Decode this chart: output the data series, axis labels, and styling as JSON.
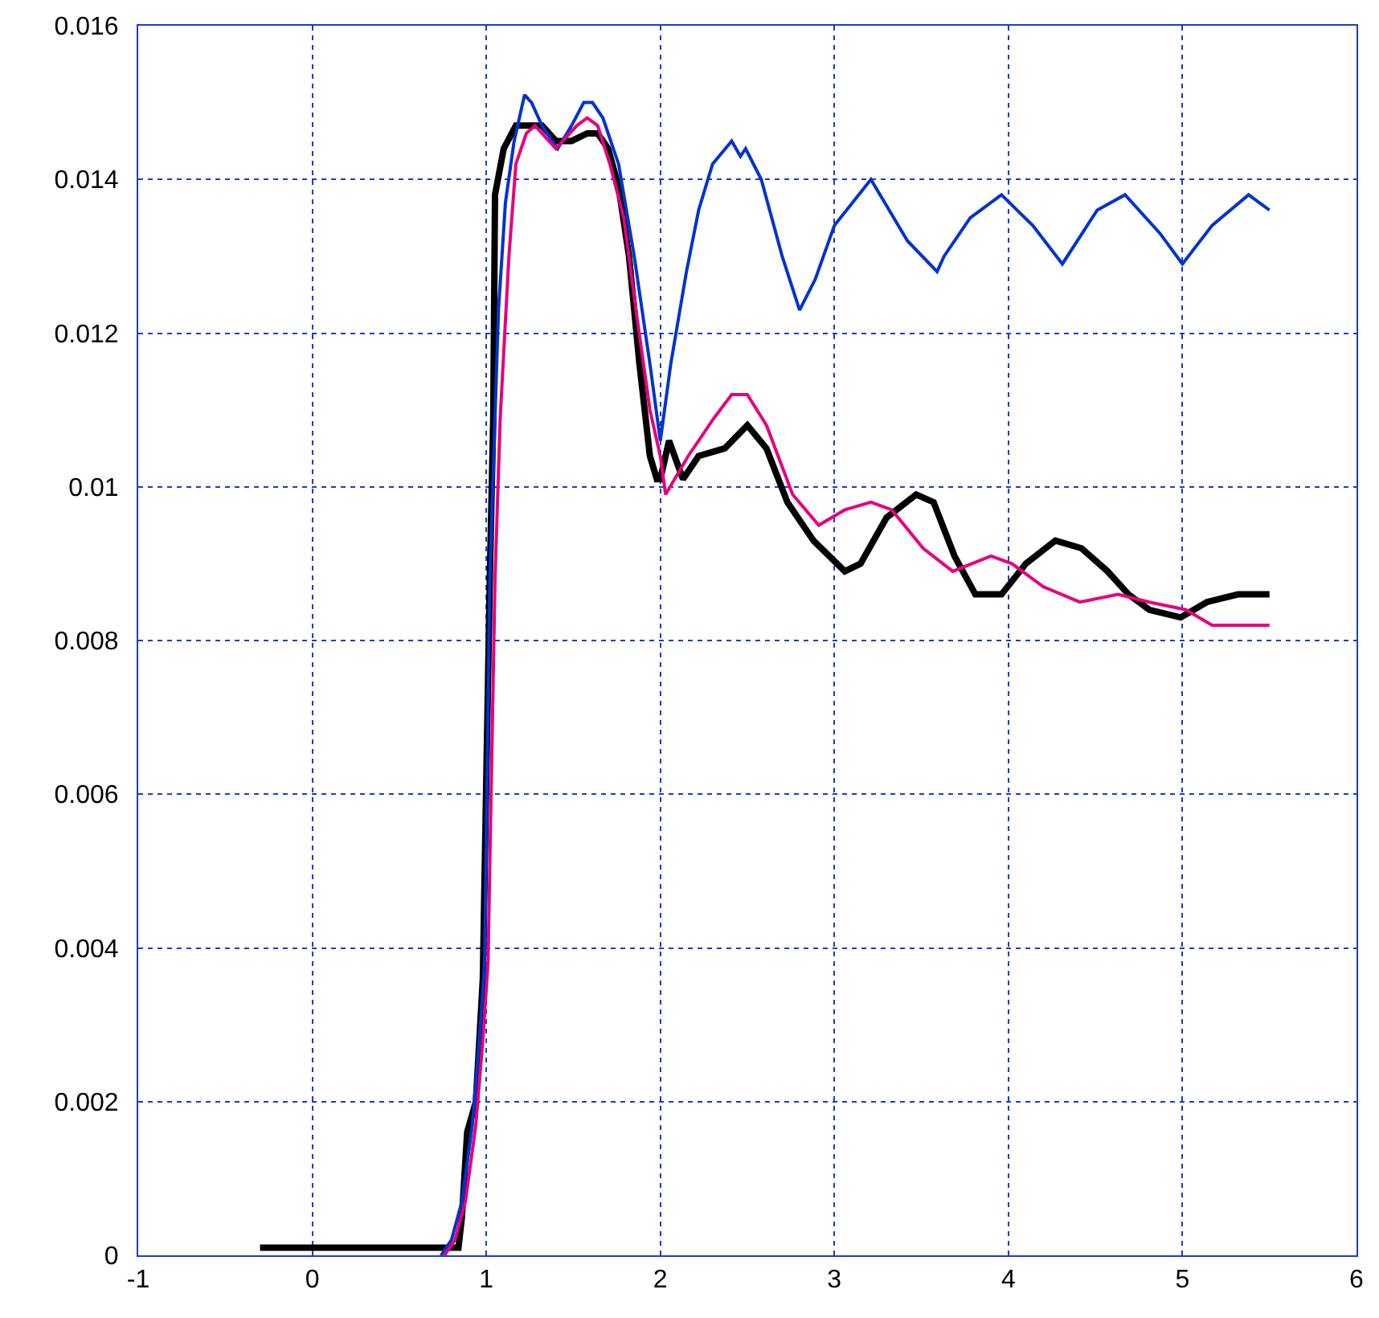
{
  "chart_data": {
    "type": "line",
    "xlim": [
      -1,
      6
    ],
    "ylim": [
      0,
      0.016
    ],
    "xticks": [
      -1,
      0,
      1,
      2,
      3,
      4,
      5,
      6
    ],
    "yticks": [
      0,
      0.002,
      0.004,
      0.006,
      0.008,
      0.01,
      0.012,
      0.014,
      0.016
    ],
    "grid": true,
    "marker": "none",
    "line_style": "solid",
    "series": [
      {
        "color": "#000000",
        "x": [
          -0.3,
          0,
          0.3,
          0.6,
          0.84,
          0.86,
          0.89,
          0.94,
          0.98,
          1.02,
          1.04,
          1.05,
          1.1,
          1.17,
          1.25,
          1.32,
          1.4,
          1.49,
          1.58,
          1.64,
          1.7,
          1.76,
          1.82,
          1.88,
          1.94,
          1.98,
          2.0,
          2.05,
          2.13,
          2.22,
          2.37,
          2.5,
          2.61,
          2.73,
          2.88,
          3.06,
          3.15,
          3.3,
          3.47,
          3.57,
          3.69,
          3.81,
          3.96,
          4.1,
          4.27,
          4.42,
          4.57,
          4.69,
          4.81,
          4.99,
          5.14,
          5.32,
          5.5
        ],
        "values": [
          0.0001,
          0.0001,
          0.0001,
          0.0001,
          0.0001,
          0.0005,
          0.0016,
          0.002,
          0.0036,
          0.0088,
          0.0109,
          0.0138,
          0.0144,
          0.0147,
          0.0147,
          0.0147,
          0.0145,
          0.0145,
          0.0146,
          0.0146,
          0.0144,
          0.0139,
          0.013,
          0.0116,
          0.0104,
          0.0101,
          0.0101,
          0.0106,
          0.0101,
          0.0104,
          0.0105,
          0.0108,
          0.0105,
          0.0098,
          0.0093,
          0.0089,
          0.009,
          0.0096,
          0.0099,
          0.0098,
          0.0091,
          0.0086,
          0.0086,
          0.009,
          0.0093,
          0.0092,
          0.0089,
          0.0086,
          0.0084,
          0.0083,
          0.0085,
          0.0086,
          0.0086
        ]
      },
      {
        "color": "#0033cc",
        "x": [
          0.74,
          0.8,
          0.86,
          0.92,
          0.96,
          0.99,
          1.02,
          1.07,
          1.11,
          1.16,
          1.22,
          1.26,
          1.32,
          1.41,
          1.49,
          1.56,
          1.61,
          1.67,
          1.76,
          1.85,
          1.94,
          2.0,
          2.06,
          2.15,
          2.22,
          2.3,
          2.41,
          2.46,
          2.49,
          2.58,
          2.7,
          2.8,
          2.89,
          3.0,
          3.21,
          3.42,
          3.59,
          3.63,
          3.78,
          3.96,
          4.14,
          4.31,
          4.51,
          4.67,
          4.87,
          5.0,
          5.17,
          5.38,
          5.5
        ],
        "values": [
          0,
          0.0002,
          0.0007,
          0.0017,
          0.0028,
          0.0038,
          0.0088,
          0.0123,
          0.0137,
          0.0145,
          0.0151,
          0.015,
          0.0147,
          0.0144,
          0.0147,
          0.015,
          0.015,
          0.0148,
          0.0142,
          0.013,
          0.0116,
          0.0106,
          0.0116,
          0.0128,
          0.0136,
          0.0142,
          0.0145,
          0.0143,
          0.0144,
          0.014,
          0.013,
          0.0123,
          0.0127,
          0.0134,
          0.014,
          0.0132,
          0.0128,
          0.013,
          0.0135,
          0.0138,
          0.0134,
          0.0129,
          0.0136,
          0.0138,
          0.0133,
          0.0129,
          0.0134,
          0.0138,
          0.0136
        ]
      },
      {
        "color": "#e6007e",
        "x": [
          0.76,
          0.82,
          0.88,
          0.94,
          0.98,
          1.01,
          1.05,
          1.08,
          1.13,
          1.17,
          1.23,
          1.28,
          1.32,
          1.4,
          1.44,
          1.52,
          1.58,
          1.64,
          1.71,
          1.79,
          1.86,
          1.94,
          2.0,
          2.03,
          2.16,
          2.31,
          2.41,
          2.5,
          2.61,
          2.76,
          2.91,
          3.06,
          3.21,
          3.33,
          3.51,
          3.68,
          3.9,
          4.02,
          4.2,
          4.41,
          4.63,
          4.81,
          5.02,
          5.17,
          5.32,
          5.5
        ],
        "values": [
          0,
          0.0002,
          0.0007,
          0.0017,
          0.0028,
          0.0038,
          0.0088,
          0.0109,
          0.013,
          0.0142,
          0.0146,
          0.0147,
          0.0146,
          0.0144,
          0.0145,
          0.0147,
          0.0148,
          0.0147,
          0.0142,
          0.0135,
          0.0123,
          0.011,
          0.0104,
          0.0099,
          0.0104,
          0.0109,
          0.0112,
          0.0112,
          0.0108,
          0.0099,
          0.0095,
          0.0097,
          0.0098,
          0.0097,
          0.0092,
          0.0089,
          0.0091,
          0.009,
          0.0087,
          0.0085,
          0.0086,
          0.0085,
          0.0084,
          0.0082,
          0.0082,
          0.0082
        ]
      }
    ]
  }
}
